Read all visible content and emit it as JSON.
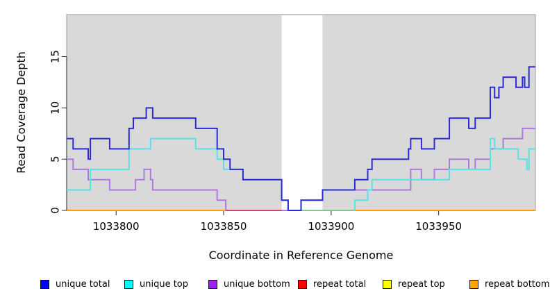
{
  "chart_data": {
    "type": "line",
    "subtype": "step-coverage",
    "title": "",
    "xlabel": "Coordinate in Reference Genome",
    "ylabel": "Read Coverage Depth",
    "xlim": [
      1033777,
      1033995
    ],
    "ylim": [
      0,
      19.1
    ],
    "xticks": [
      1033800,
      1033850,
      1033900,
      1033950
    ],
    "yticks": [
      0,
      5,
      10,
      15
    ],
    "grid": false,
    "plot_bg": "#d9d9d9",
    "plot_bg_border": "#9a9a9a",
    "shaded_regions": [
      [
        1033777,
        1033877
      ],
      [
        1033896,
        1033995
      ]
    ],
    "white_gap": [
      1033877,
      1033896
    ],
    "axis_color": "#222222",
    "series": [
      {
        "name": "unique total",
        "color": "#2a2ad8",
        "legend_color": "#0000ff",
        "points": [
          [
            1033777,
            7
          ],
          [
            1033780,
            6
          ],
          [
            1033787,
            5
          ],
          [
            1033788,
            7
          ],
          [
            1033797,
            6
          ],
          [
            1033806,
            8
          ],
          [
            1033808,
            9
          ],
          [
            1033814,
            10
          ],
          [
            1033817,
            9
          ],
          [
            1033837,
            8
          ],
          [
            1033847,
            6
          ],
          [
            1033850,
            5
          ],
          [
            1033853,
            4
          ],
          [
            1033859,
            3
          ],
          [
            1033877,
            1
          ],
          [
            1033880,
            0
          ],
          [
            1033886,
            1
          ],
          [
            1033896,
            2
          ],
          [
            1033911,
            3
          ],
          [
            1033917,
            4
          ],
          [
            1033919,
            5
          ],
          [
            1033936,
            6
          ],
          [
            1033937,
            7
          ],
          [
            1033942,
            6
          ],
          [
            1033948,
            7
          ],
          [
            1033955,
            9
          ],
          [
            1033964,
            8
          ],
          [
            1033967,
            9
          ],
          [
            1033974,
            12
          ],
          [
            1033976,
            11
          ],
          [
            1033978,
            12
          ],
          [
            1033980,
            13
          ],
          [
            1033986,
            12
          ],
          [
            1033989,
            13
          ],
          [
            1033990,
            12
          ],
          [
            1033992,
            14
          ]
        ]
      },
      {
        "name": "unique top",
        "color": "#58e2e8",
        "legend_color": "#00ffff",
        "points": [
          [
            1033777,
            2
          ],
          [
            1033788,
            4
          ],
          [
            1033806,
            6
          ],
          [
            1033816,
            7
          ],
          [
            1033837,
            6
          ],
          [
            1033847,
            5
          ],
          [
            1033850,
            4
          ],
          [
            1033859,
            3
          ],
          [
            1033877,
            1
          ],
          [
            1033880,
            0
          ],
          [
            1033911,
            1
          ],
          [
            1033917,
            2
          ],
          [
            1033919,
            3
          ],
          [
            1033955,
            4
          ],
          [
            1033974,
            7
          ],
          [
            1033976,
            6
          ],
          [
            1033987,
            5
          ],
          [
            1033991,
            4
          ],
          [
            1033992,
            6
          ]
        ]
      },
      {
        "name": "unique bottom",
        "color": "#ad79de",
        "legend_color": "#a020f0",
        "points": [
          [
            1033777,
            5
          ],
          [
            1033780,
            4
          ],
          [
            1033787,
            3
          ],
          [
            1033797,
            2
          ],
          [
            1033809,
            3
          ],
          [
            1033813,
            4
          ],
          [
            1033816,
            3
          ],
          [
            1033817,
            2
          ],
          [
            1033847,
            1
          ],
          [
            1033851,
            0
          ],
          [
            1033886,
            1
          ],
          [
            1033896,
            2
          ],
          [
            1033937,
            4
          ],
          [
            1033942,
            3
          ],
          [
            1033948,
            4
          ],
          [
            1033955,
            5
          ],
          [
            1033964,
            4
          ],
          [
            1033967,
            5
          ],
          [
            1033974,
            6
          ],
          [
            1033980,
            7
          ],
          [
            1033989,
            8
          ]
        ]
      },
      {
        "name": "repeat total",
        "color": "#d04468",
        "legend_color": "#ff0000",
        "points": [
          [
            1033777,
            0
          ]
        ]
      },
      {
        "name": "repeat top",
        "color": "#ffff00",
        "legend_color": "#ffff00",
        "points": [
          [
            1033777,
            0
          ]
        ]
      },
      {
        "name": "repeat bottom",
        "color": "#ff9d05",
        "legend_color": "#ffa500",
        "points": [
          [
            1033777,
            0
          ]
        ]
      }
    ],
    "baseline_render": [
      {
        "name": "orange-left",
        "color": "#ff9d05",
        "x0": 1033777,
        "x1": 1033851,
        "y": 0
      },
      {
        "name": "orange-right",
        "color": "#ff9d05",
        "x0": 1033911,
        "x1": 1033995,
        "y": 0
      },
      {
        "name": "crimson",
        "color": "#d04468",
        "x0": 1033851,
        "x1": 1033877,
        "y": 0
      },
      {
        "name": "green",
        "color": "#84ca84",
        "x0": 1033886,
        "x1": 1033911,
        "y": 0
      }
    ],
    "draw_order": [
      "base:orange-left",
      "base:orange-right",
      "series:unique bottom",
      "base:crimson",
      "series:unique top",
      "base:green",
      "series:unique total"
    ]
  },
  "legend": {
    "items": [
      {
        "label": "unique total",
        "color": "#0000ff"
      },
      {
        "label": "unique top",
        "color": "#00ffff"
      },
      {
        "label": "unique bottom",
        "color": "#a020f0"
      },
      {
        "label": "repeat total",
        "color": "#ff0000"
      },
      {
        "label": "repeat top",
        "color": "#ffff00"
      },
      {
        "label": "repeat bottom",
        "color": "#ffa500"
      }
    ]
  }
}
